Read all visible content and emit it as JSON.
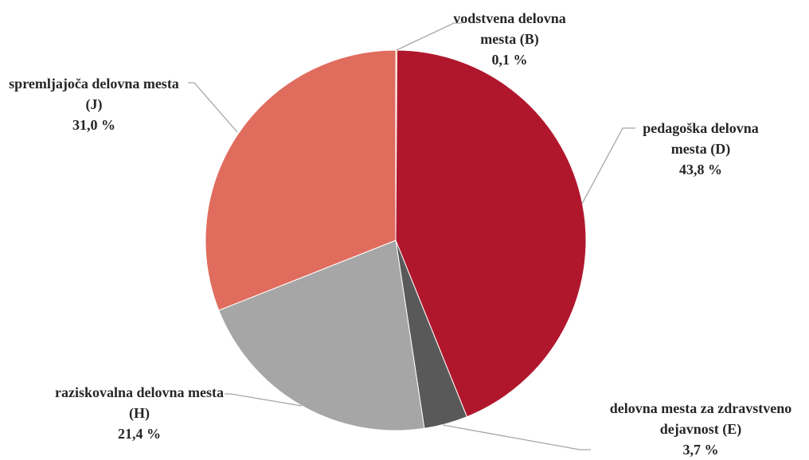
{
  "chart_data": {
    "type": "pie",
    "categories": [
      "vodstvena delovna mesta (B)",
      "pedagoška delovna mesta (D)",
      "delovna mesta za zdravstveno dejavnost (E)",
      "raziskovalna delovna mesta (H)",
      "spremljajoča delovna mesta (J)"
    ],
    "values": [
      0.1,
      43.8,
      3.7,
      21.4,
      31.0
    ],
    "value_labels": [
      "0,1 %",
      "43,8 %",
      "3,7 %",
      "21,4 %",
      "31,0 %"
    ],
    "colors": [
      "#e8a33a",
      "#b0172d",
      "#595959",
      "#a6a6a6",
      "#e06c5d"
    ]
  }
}
